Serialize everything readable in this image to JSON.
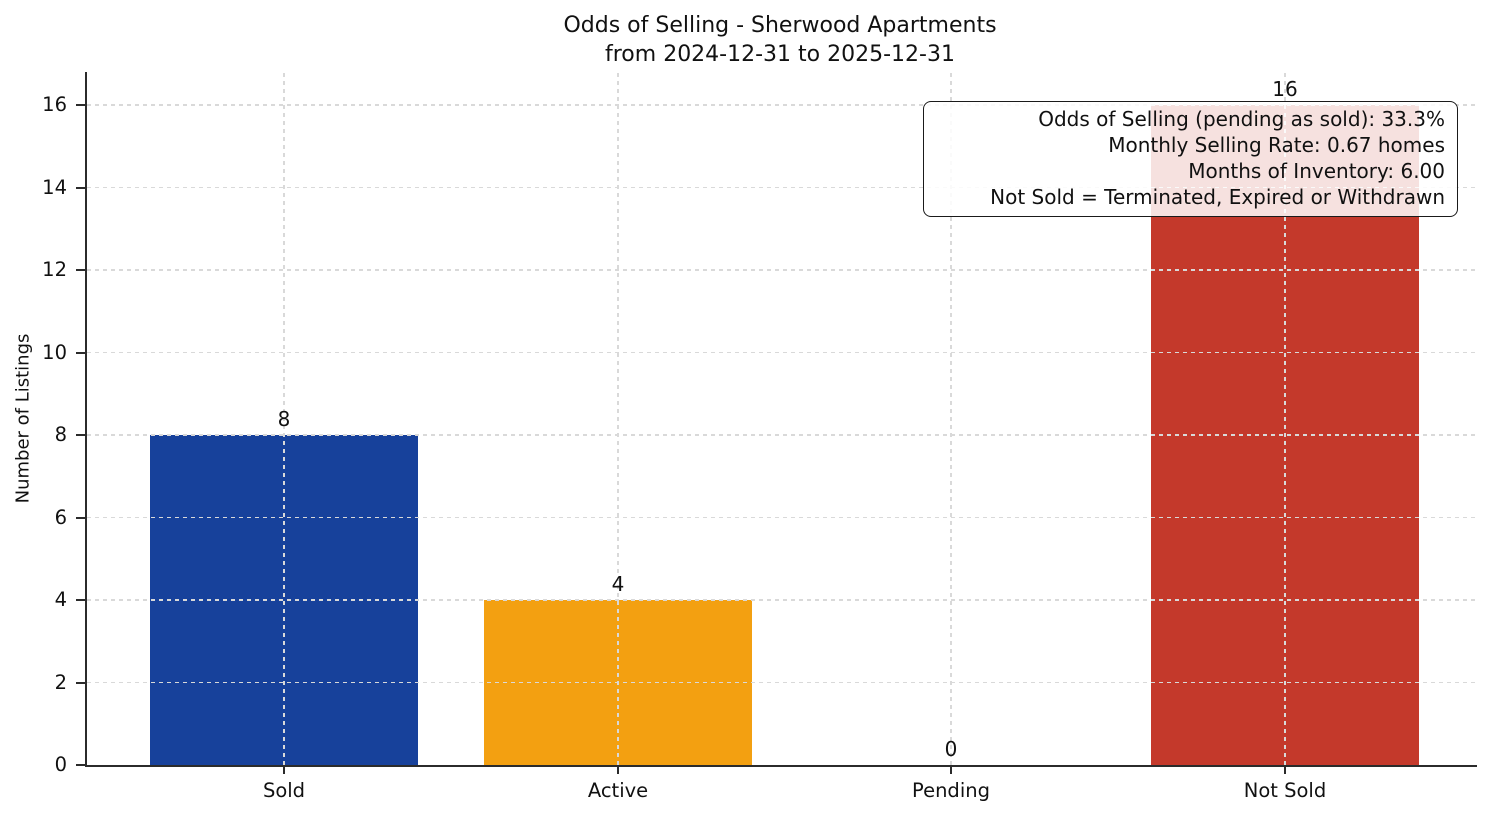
{
  "chart_data": {
    "type": "bar",
    "title": "Odds of Selling - Sherwood Apartments",
    "subtitle": "from 2024-12-31 to 2025-12-31",
    "categories": [
      "Sold",
      "Active",
      "Pending",
      "Not Sold"
    ],
    "values": [
      8,
      4,
      0,
      16
    ],
    "bar_value_labels": [
      "8",
      "4",
      "0",
      "16"
    ],
    "bar_colors": [
      "#17419B",
      "#F3A011",
      null,
      "#C4392B"
    ],
    "xlabel": "",
    "ylabel": "Number of Listings",
    "yticks": [
      0,
      2,
      4,
      6,
      8,
      10,
      12,
      14,
      16
    ],
    "ylim": [
      0,
      16.8
    ],
    "grid": true,
    "grid_style": "dashed",
    "legend": false,
    "annotation_lines": [
      "Odds of Selling (pending as sold): 33.3%",
      "Monthly Selling Rate: 0.67 homes",
      "Months of Inventory: 6.00",
      "Not Sold = Terminated, Expired or Withdrawn"
    ]
  },
  "style": {
    "background": "#ffffff",
    "axis_color": "#2b2b2b",
    "grid_color": "#d9d9d9",
    "text_color": "#111111",
    "annotation_border": "#1a1a1a",
    "annotation_background": "rgba(255,255,255,0.85)"
  }
}
